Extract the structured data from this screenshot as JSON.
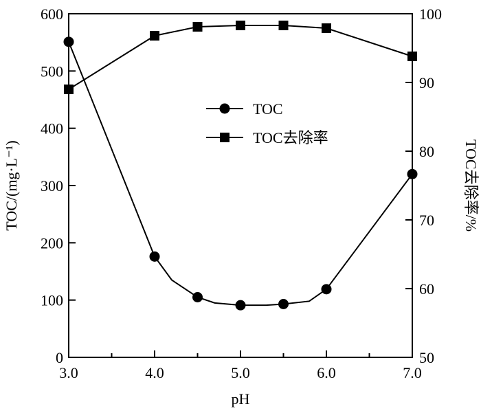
{
  "chart_data": {
    "type": "line",
    "xlabel": "pH",
    "ylabel_left": "TOC/(mg·L⁻¹)",
    "ylabel_right": "TOC去除率/%",
    "xlim": [
      3.0,
      7.0
    ],
    "ylim_left": [
      0,
      600
    ],
    "ylim_right": [
      50,
      100
    ],
    "x_ticks": [
      3.0,
      4.0,
      5.0,
      6.0,
      7.0
    ],
    "x_tick_labels": [
      "3.0",
      "4.0",
      "5.0",
      "6.0",
      "7.0"
    ],
    "y_left_ticks": [
      0,
      100,
      200,
      300,
      400,
      500,
      600
    ],
    "y_left_tick_labels": [
      "0",
      "100",
      "200",
      "300",
      "400",
      "500",
      "600"
    ],
    "y_right_ticks": [
      50,
      60,
      70,
      80,
      90,
      100
    ],
    "y_right_tick_labels": [
      "50",
      "60",
      "70",
      "80",
      "90",
      "100"
    ],
    "legend_position": "center",
    "grid": false,
    "series": [
      {
        "name": "TOC",
        "axis": "left",
        "marker": "circle",
        "x": [
          3.0,
          4.0,
          4.5,
          5.0,
          5.5,
          6.0,
          7.0
        ],
        "values": [
          551,
          176,
          105,
          91,
          93,
          119,
          320
        ],
        "smooth_x": [
          3.0,
          4.0,
          4.2,
          4.5,
          4.7,
          5.0,
          5.3,
          5.5,
          5.8,
          6.0,
          7.0
        ],
        "smooth_values": [
          551,
          176,
          135,
          105,
          95,
          91,
          91,
          93,
          98,
          119,
          320
        ]
      },
      {
        "name": "TOC去除率",
        "axis": "right",
        "marker": "square",
        "x": [
          3.0,
          4.0,
          4.5,
          5.0,
          5.5,
          6.0,
          7.0
        ],
        "values": [
          89,
          96.8,
          98.1,
          98.3,
          98.3,
          97.9,
          93.8
        ]
      }
    ]
  }
}
